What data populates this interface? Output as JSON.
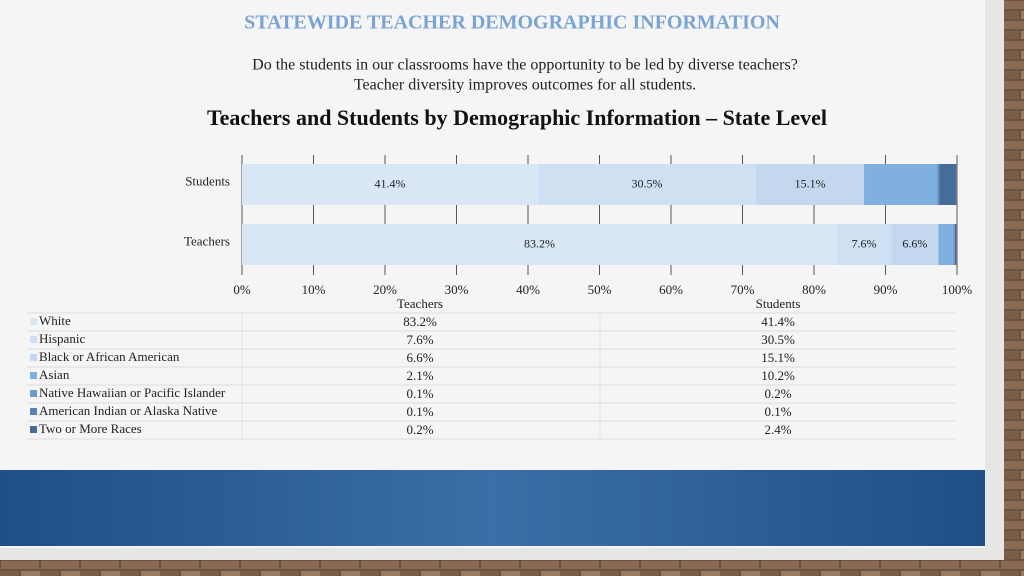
{
  "slide": {
    "title": "STATEWIDE TEACHER DEMOGRAPHIC INFORMATION",
    "subtitle_lines": [
      "Do the students in our classrooms have the opportunity to be led by diverse teachers?",
      "Teacher diversity improves outcomes for all students."
    ]
  },
  "chart_data": {
    "type": "stacked-hbar",
    "title": "Teachers and Students by Demographic Information – State Level",
    "categories": [
      "Students",
      "Teachers"
    ],
    "series": [
      {
        "name": "White",
        "color": "#d9e6f4",
        "labels": true,
        "values": [
          41.4,
          83.2
        ],
        "value_labels": [
          "41.4%",
          "83.2%"
        ]
      },
      {
        "name": "Hispanic",
        "color": "#cfe0f2",
        "labels": true,
        "values": [
          30.5,
          7.6
        ],
        "value_labels": [
          "30.5%",
          "7.6%"
        ]
      },
      {
        "name": "Black or African American",
        "color": "#c3d8ef",
        "labels": true,
        "values": [
          15.1,
          6.6
        ],
        "value_labels": [
          "15.1%",
          "6.6%"
        ]
      },
      {
        "name": "Asian",
        "color": "#7fb0df",
        "labels": false,
        "values": [
          10.2,
          2.1
        ],
        "value_labels": [
          "10.2%",
          "2.1%"
        ]
      },
      {
        "name": "Native Hawaiian or Pacific Islander",
        "color": "#6b9bcc",
        "labels": false,
        "values": [
          0.2,
          0.1
        ],
        "value_labels": [
          "0.2%",
          "0.1%"
        ]
      },
      {
        "name": "American Indian or Alaska Native",
        "color": "#5883b4",
        "labels": false,
        "values": [
          0.1,
          0.1
        ],
        "value_labels": [
          "0.1%",
          "0.1%"
        ]
      },
      {
        "name": "Two or More Races",
        "color": "#466d99",
        "labels": false,
        "values": [
          2.4,
          0.2
        ],
        "value_labels": [
          "2.4%",
          "0.2%"
        ]
      }
    ],
    "xlim": [
      0,
      100
    ],
    "xticks": [
      {
        "value": 0,
        "label": "0%"
      },
      {
        "value": 10,
        "label": "10%"
      },
      {
        "value": 20,
        "label": "20%"
      },
      {
        "value": 30,
        "label": "30%"
      },
      {
        "value": 40,
        "label": "40%"
      },
      {
        "value": 50,
        "label": "50%"
      },
      {
        "value": 60,
        "label": "60%"
      },
      {
        "value": 70,
        "label": "70%"
      },
      {
        "value": 80,
        "label": "80%"
      },
      {
        "value": 90,
        "label": "90%"
      },
      {
        "value": 100,
        "label": "100%"
      }
    ],
    "grid": true
  }
}
